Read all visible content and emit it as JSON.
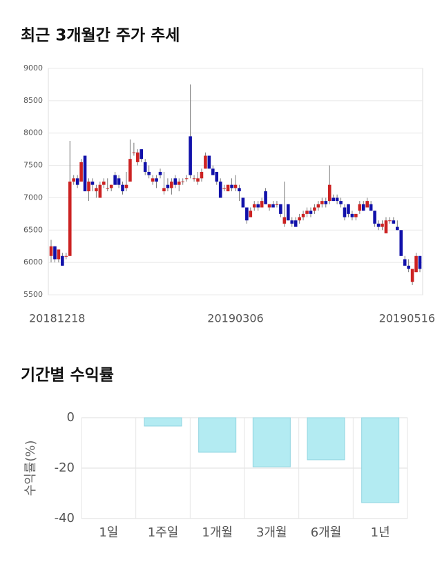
{
  "chart_data": [
    {
      "type": "candlestick",
      "title": "최근 3개월간 주가 추세",
      "categories": [
        "20181218",
        null,
        null,
        null,
        null,
        null,
        null,
        null,
        null,
        null,
        null,
        null,
        null,
        null,
        null,
        null,
        null,
        null,
        null,
        null,
        null,
        null,
        null,
        null,
        null,
        null,
        null,
        null,
        null,
        null,
        null,
        null,
        null,
        null,
        null,
        null,
        null,
        null,
        null,
        null,
        null,
        null,
        null,
        null,
        null,
        null,
        null,
        null,
        null,
        "20190306",
        null,
        null,
        null,
        null,
        null,
        null,
        null,
        null,
        null,
        null,
        null,
        null,
        null,
        null,
        null,
        null,
        null,
        null,
        null,
        null,
        null,
        null,
        null,
        null,
        null,
        null,
        null,
        null,
        null,
        null,
        null,
        null,
        null,
        null,
        null,
        null,
        null,
        null,
        null,
        null,
        null,
        null,
        null,
        null,
        null,
        null,
        null,
        null,
        "20190516"
      ],
      "ohlc": [
        [
          6100,
          6350,
          6000,
          6250
        ],
        [
          6250,
          6250,
          6000,
          6050
        ],
        [
          6050,
          6200,
          6000,
          6200
        ],
        [
          6100,
          6150,
          5950,
          5950
        ],
        [
          6100,
          6150,
          6050,
          6100
        ],
        [
          6100,
          7880,
          6100,
          7250
        ],
        [
          7250,
          7350,
          7200,
          7300
        ],
        [
          7300,
          7350,
          7150,
          7200
        ],
        [
          7250,
          7600,
          7250,
          7550
        ],
        [
          7650,
          7650,
          7100,
          7100
        ],
        [
          7100,
          7300,
          6950,
          7250
        ],
        [
          7250,
          7300,
          7100,
          7200
        ],
        [
          7100,
          7200,
          7000,
          7150
        ],
        [
          7000,
          7250,
          7000,
          7200
        ],
        [
          7200,
          7300,
          7150,
          7250
        ],
        [
          7150,
          7300,
          7100,
          7150
        ],
        [
          7150,
          7200,
          7100,
          7200
        ],
        [
          7350,
          7400,
          7200,
          7200
        ],
        [
          7300,
          7350,
          7150,
          7200
        ],
        [
          7200,
          7250,
          7050,
          7100
        ],
        [
          7150,
          7400,
          7100,
          7200
        ],
        [
          7250,
          7900,
          7250,
          7600
        ],
        [
          7700,
          7850,
          7650,
          7700
        ],
        [
          7550,
          7750,
          7500,
          7700
        ],
        [
          7750,
          7750,
          7550,
          7600
        ],
        [
          7550,
          7600,
          7350,
          7400
        ],
        [
          7400,
          7500,
          7300,
          7350
        ],
        [
          7250,
          7350,
          7200,
          7300
        ],
        [
          7300,
          7350,
          7150,
          7250
        ],
        [
          7400,
          7450,
          7300,
          7350
        ],
        [
          7100,
          7400,
          7050,
          7150
        ],
        [
          7200,
          7300,
          7100,
          7150
        ],
        [
          7150,
          7300,
          7050,
          7250
        ],
        [
          7300,
          7350,
          7150,
          7200
        ],
        [
          7200,
          7300,
          7100,
          7250
        ],
        [
          7250,
          7300,
          7200,
          7250
        ],
        [
          7300,
          7350,
          7250,
          7300
        ],
        [
          7950,
          8750,
          7300,
          7350
        ],
        [
          7300,
          7350,
          7250,
          7300
        ],
        [
          7250,
          7400,
          7200,
          7300
        ],
        [
          7300,
          7450,
          7250,
          7400
        ],
        [
          7450,
          7700,
          7450,
          7650
        ],
        [
          7650,
          7650,
          7450,
          7450
        ],
        [
          7450,
          7500,
          7350,
          7350
        ],
        [
          7400,
          7400,
          7200,
          7250
        ],
        [
          7250,
          7300,
          7000,
          7000
        ],
        [
          7150,
          7200,
          7100,
          7150
        ],
        [
          7100,
          7200,
          7100,
          7200
        ],
        [
          7200,
          7300,
          7100,
          7150
        ],
        [
          7150,
          7350,
          7100,
          7200
        ],
        [
          7150,
          7200,
          6950,
          7100
        ],
        [
          7000,
          7000,
          6850,
          6850
        ],
        [
          6850,
          6850,
          6600,
          6650
        ],
        [
          6700,
          6850,
          6700,
          6800
        ],
        [
          6850,
          6950,
          6800,
          6900
        ],
        [
          6900,
          6950,
          6800,
          6850
        ],
        [
          6850,
          7000,
          6850,
          6950
        ],
        [
          7100,
          7150,
          6900,
          6900
        ],
        [
          6850,
          6900,
          6800,
          6900
        ],
        [
          6900,
          6950,
          6850,
          6850
        ],
        [
          6900,
          6950,
          6850,
          6900
        ],
        [
          6900,
          6900,
          6700,
          6750
        ],
        [
          6600,
          7250,
          6550,
          6700
        ],
        [
          6900,
          6900,
          6650,
          6650
        ],
        [
          6650,
          6700,
          6550,
          6600
        ],
        [
          6650,
          6700,
          6550,
          6550
        ],
        [
          6650,
          6750,
          6600,
          6700
        ],
        [
          6700,
          6800,
          6650,
          6750
        ],
        [
          6750,
          6850,
          6700,
          6800
        ],
        [
          6800,
          6850,
          6700,
          6750
        ],
        [
          6800,
          6900,
          6750,
          6850
        ],
        [
          6850,
          6950,
          6800,
          6900
        ],
        [
          6900,
          7000,
          6850,
          6950
        ],
        [
          6950,
          7000,
          6850,
          6900
        ],
        [
          6950,
          7500,
          6900,
          7200
        ],
        [
          7000,
          7050,
          6950,
          6950
        ],
        [
          7000,
          7050,
          6900,
          6950
        ],
        [
          6950,
          7000,
          6850,
          6900
        ],
        [
          6850,
          6900,
          6650,
          6700
        ],
        [
          6900,
          6900,
          6700,
          6750
        ],
        [
          6750,
          6800,
          6650,
          6700
        ],
        [
          6700,
          6750,
          6650,
          6750
        ],
        [
          6800,
          6950,
          6750,
          6900
        ],
        [
          6900,
          6950,
          6800,
          6800
        ],
        [
          6850,
          7000,
          6850,
          6950
        ],
        [
          6900,
          6950,
          6800,
          6800
        ],
        [
          6800,
          6800,
          6550,
          6600
        ],
        [
          6600,
          6650,
          6500,
          6550
        ],
        [
          6550,
          6650,
          6500,
          6600
        ],
        [
          6450,
          6700,
          6450,
          6650
        ],
        [
          6650,
          6700,
          6600,
          6650
        ],
        [
          6650,
          6700,
          6600,
          6600
        ],
        [
          6550,
          6650,
          6500,
          6500
        ],
        [
          6500,
          6500,
          6100,
          6100
        ],
        [
          6050,
          6100,
          5950,
          5950
        ],
        [
          5950,
          6050,
          5850,
          5900
        ],
        [
          5700,
          5900,
          5650,
          5900
        ],
        [
          5850,
          6150,
          5850,
          6100
        ],
        [
          6100,
          6100,
          5850,
          5900
        ]
      ],
      "up_color": "#cc2222",
      "down_color": "#1111aa",
      "ylim": [
        5500,
        9000
      ],
      "yticks": [
        5500,
        6000,
        6500,
        7000,
        7500,
        8000,
        8500,
        9000
      ],
      "grid": true
    },
    {
      "type": "bar",
      "title": "기간별 수익률",
      "y_label": "수익률(%)",
      "categories": [
        "1일",
        "1주일",
        "1개월",
        "3개월",
        "6개월",
        "1년"
      ],
      "values": [
        0,
        -3.3,
        -13.7,
        -19.5,
        -16.7,
        -33.7
      ],
      "color": "#b3ebf2",
      "ylim": [
        -40,
        0
      ],
      "yticks": [
        -40,
        -20,
        0
      ],
      "grid": true
    }
  ]
}
